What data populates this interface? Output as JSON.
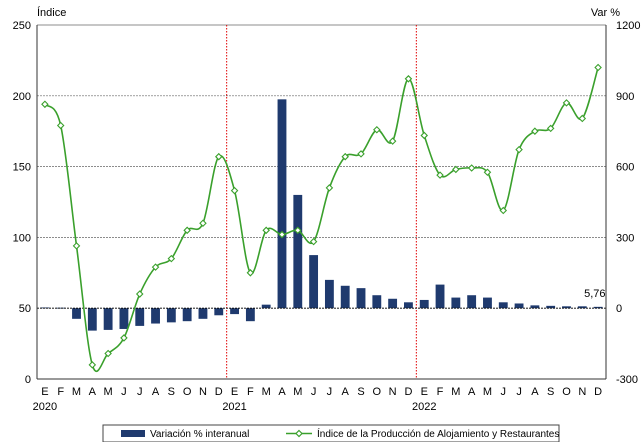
{
  "chart_data": {
    "type": "bar+line",
    "title": "",
    "y_left_label": "Índice",
    "y_right_label": "Var %",
    "y_left_ticks": [
      0,
      50,
      100,
      150,
      200,
      250
    ],
    "y_right_ticks": [
      -300,
      0,
      300,
      600,
      900,
      1200
    ],
    "ylim_left": [
      0,
      250
    ],
    "ylim_right": [
      -300,
      1200
    ],
    "categories": [
      "E",
      "F",
      "M",
      "A",
      "M",
      "J",
      "J",
      "A",
      "S",
      "O",
      "N",
      "D",
      "E",
      "F",
      "M",
      "A",
      "M",
      "J",
      "J",
      "A",
      "S",
      "O",
      "N",
      "D",
      "E",
      "F",
      "M",
      "A",
      "M",
      "J",
      "J",
      "A",
      "S",
      "O",
      "N",
      "D"
    ],
    "years": [
      {
        "label": "2020",
        "start_index": 0
      },
      {
        "label": "2021",
        "start_index": 12
      },
      {
        "label": "2022",
        "start_index": 24
      }
    ],
    "year_separators_before_index": [
      12,
      24
    ],
    "colors": {
      "bar": "#1f3a6e",
      "line": "#3aa02c",
      "marker_fill": "#ffffff",
      "separator": "#e00000",
      "grid": "#666666"
    },
    "series": [
      {
        "name": "Variación % interanual",
        "axis": "right",
        "type": "bar",
        "values": [
          3,
          2,
          -45,
          -95,
          -92,
          -88,
          -75,
          -65,
          -60,
          -55,
          -45,
          -30,
          -25,
          -55,
          15,
          885,
          480,
          225,
          120,
          95,
          85,
          55,
          40,
          25,
          35,
          100,
          45,
          55,
          45,
          25,
          20,
          12,
          10,
          8,
          8,
          5.76
        ]
      },
      {
        "name": "Índice de la Producción de Alojamiento y Restaurantes",
        "axis": "left",
        "type": "line",
        "values": [
          194,
          179,
          94,
          10,
          18,
          29,
          60,
          79,
          85,
          105,
          110,
          157,
          133,
          75,
          105,
          102,
          105,
          97,
          135,
          157,
          159,
          176,
          168,
          212,
          172,
          144,
          148,
          149,
          146,
          119,
          162,
          175,
          177,
          195,
          184,
          220
        ]
      }
    ],
    "annotations": [
      {
        "text": "5,76",
        "index": 35
      }
    ],
    "legend": {
      "placement": "bottom"
    }
  }
}
